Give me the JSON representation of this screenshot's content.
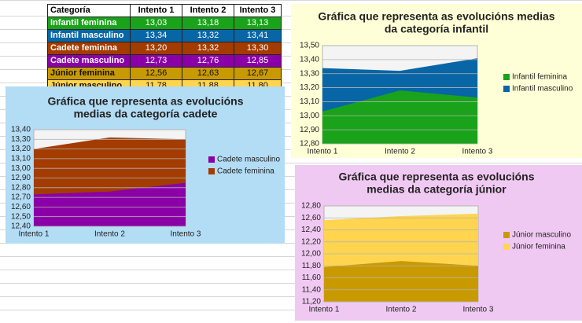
{
  "table": {
    "header": [
      "Categoría",
      "Intento 1",
      "Intento 2",
      "Intento 3"
    ],
    "rows": [
      [
        "Infantil feminina",
        "13,03",
        "13,18",
        "13,13"
      ],
      [
        "Infantil masculino",
        "13,34",
        "13,32",
        "13,41"
      ],
      [
        "Cadete feminina",
        "13,20",
        "13,32",
        "13,30"
      ],
      [
        "Cadete masculino",
        "12,73",
        "12,76",
        "12,85"
      ],
      [
        "Júnior feminina",
        "12,56",
        "12,63",
        "12,67"
      ],
      [
        "Júnior masculino",
        "11,78",
        "11,88",
        "11,80"
      ]
    ]
  },
  "chart_data": [
    {
      "type": "area",
      "title": [
        "Gráfica que representa as evolucións medias",
        "da categoría infantil"
      ],
      "categories": [
        "Intento 1",
        "Intento 2",
        "Intento 3"
      ],
      "series": [
        {
          "name": "Infantil feminina",
          "color": "#1aa31a",
          "values": [
            13.03,
            13.18,
            13.13
          ]
        },
        {
          "name": "Infantil masculino",
          "color": "#0866a6",
          "values": [
            13.34,
            13.32,
            13.41
          ]
        }
      ],
      "ylim": [
        12.8,
        13.5
      ],
      "yticks": [
        {
          "value": 12.8,
          "label": "12,80"
        },
        {
          "value": 12.9,
          "label": "12,90"
        },
        {
          "value": 13.0,
          "label": "13,00"
        },
        {
          "value": 13.1,
          "label": "13,10"
        },
        {
          "value": 13.2,
          "label": "13,20"
        },
        {
          "value": 13.3,
          "label": "13,30"
        },
        {
          "value": 13.4,
          "label": "13,40"
        },
        {
          "value": 13.5,
          "label": "13,50"
        }
      ],
      "grid": true,
      "legend": "right",
      "background": "#ffffd7"
    },
    {
      "type": "area",
      "title": [
        "Gráfica que representa as evolucións",
        "medias da categoría cadete"
      ],
      "categories": [
        "Intento 1",
        "Intento 2",
        "Intento 3"
      ],
      "series": [
        {
          "name": "Cadete masculino",
          "color": "#8b00a6",
          "values": [
            12.73,
            12.76,
            12.85
          ]
        },
        {
          "name": "Cadete feminina",
          "color": "#a33c00",
          "values": [
            13.2,
            13.32,
            13.3
          ]
        }
      ],
      "ylim": [
        12.4,
        13.4
      ],
      "yticks": [
        {
          "value": 12.4,
          "label": "12,40"
        },
        {
          "value": 12.5,
          "label": "12,50"
        },
        {
          "value": 12.6,
          "label": "12,60"
        },
        {
          "value": 12.7,
          "label": "12,70"
        },
        {
          "value": 12.8,
          "label": "12,80"
        },
        {
          "value": 12.9,
          "label": "12,90"
        },
        {
          "value": 13.0,
          "label": "13,00"
        },
        {
          "value": 13.1,
          "label": "13,10"
        },
        {
          "value": 13.2,
          "label": "13,20"
        },
        {
          "value": 13.3,
          "label": "13,30"
        },
        {
          "value": 13.4,
          "label": "13,40"
        }
      ],
      "grid": true,
      "legend": "right",
      "background": "#b3dcf5"
    },
    {
      "type": "area",
      "title": [
        "Gráfica que representa as evolucións",
        "medias da categoría júnior"
      ],
      "categories": [
        "Intento 1",
        "Intento 2",
        "Intento 3"
      ],
      "series": [
        {
          "name": "Júnior masculino",
          "color": "#c99a00",
          "values": [
            11.78,
            11.88,
            11.8
          ]
        },
        {
          "name": "Júnior feminina",
          "color": "#ffd54f",
          "values": [
            12.56,
            12.63,
            12.67
          ]
        }
      ],
      "ylim": [
        11.2,
        12.8
      ],
      "yticks": [
        {
          "value": 11.2,
          "label": "11,20"
        },
        {
          "value": 11.4,
          "label": "11,40"
        },
        {
          "value": 11.6,
          "label": "11,60"
        },
        {
          "value": 11.8,
          "label": "11,80"
        },
        {
          "value": 12.0,
          "label": "12,00"
        },
        {
          "value": 12.2,
          "label": "12,20"
        },
        {
          "value": 12.4,
          "label": "12,40"
        },
        {
          "value": 12.6,
          "label": "12,60"
        },
        {
          "value": 12.8,
          "label": "12,80"
        }
      ],
      "grid": true,
      "legend": "right",
      "background": "#f0c9f2"
    }
  ]
}
